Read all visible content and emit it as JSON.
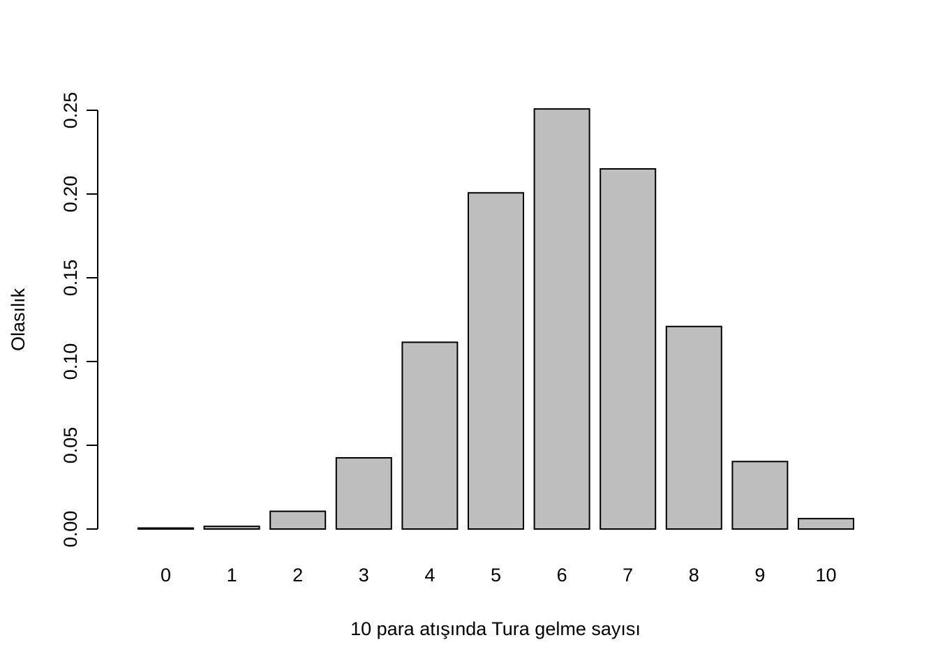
{
  "chart_data": {
    "type": "bar",
    "title": "",
    "xlabel": "10 para atışında Tura gelme sayısı",
    "ylabel": "Olasılık",
    "categories": [
      "0",
      "1",
      "2",
      "3",
      "4",
      "5",
      "6",
      "7",
      "8",
      "9",
      "10"
    ],
    "values": [
      0.0006,
      0.0016,
      0.0106,
      0.0425,
      0.1115,
      0.2007,
      0.2508,
      0.215,
      0.1209,
      0.0403,
      0.0062
    ],
    "ylim": [
      0,
      0.25
    ],
    "yticks": [
      "0.00",
      "0.05",
      "0.10",
      "0.15",
      "0.20",
      "0.25"
    ],
    "ytick_values": [
      0,
      0.05,
      0.1,
      0.15,
      0.2,
      0.25
    ],
    "grid": false,
    "legend": "none",
    "colors": {
      "bar_fill": "#bebebe",
      "bar_stroke": "#000000"
    }
  }
}
